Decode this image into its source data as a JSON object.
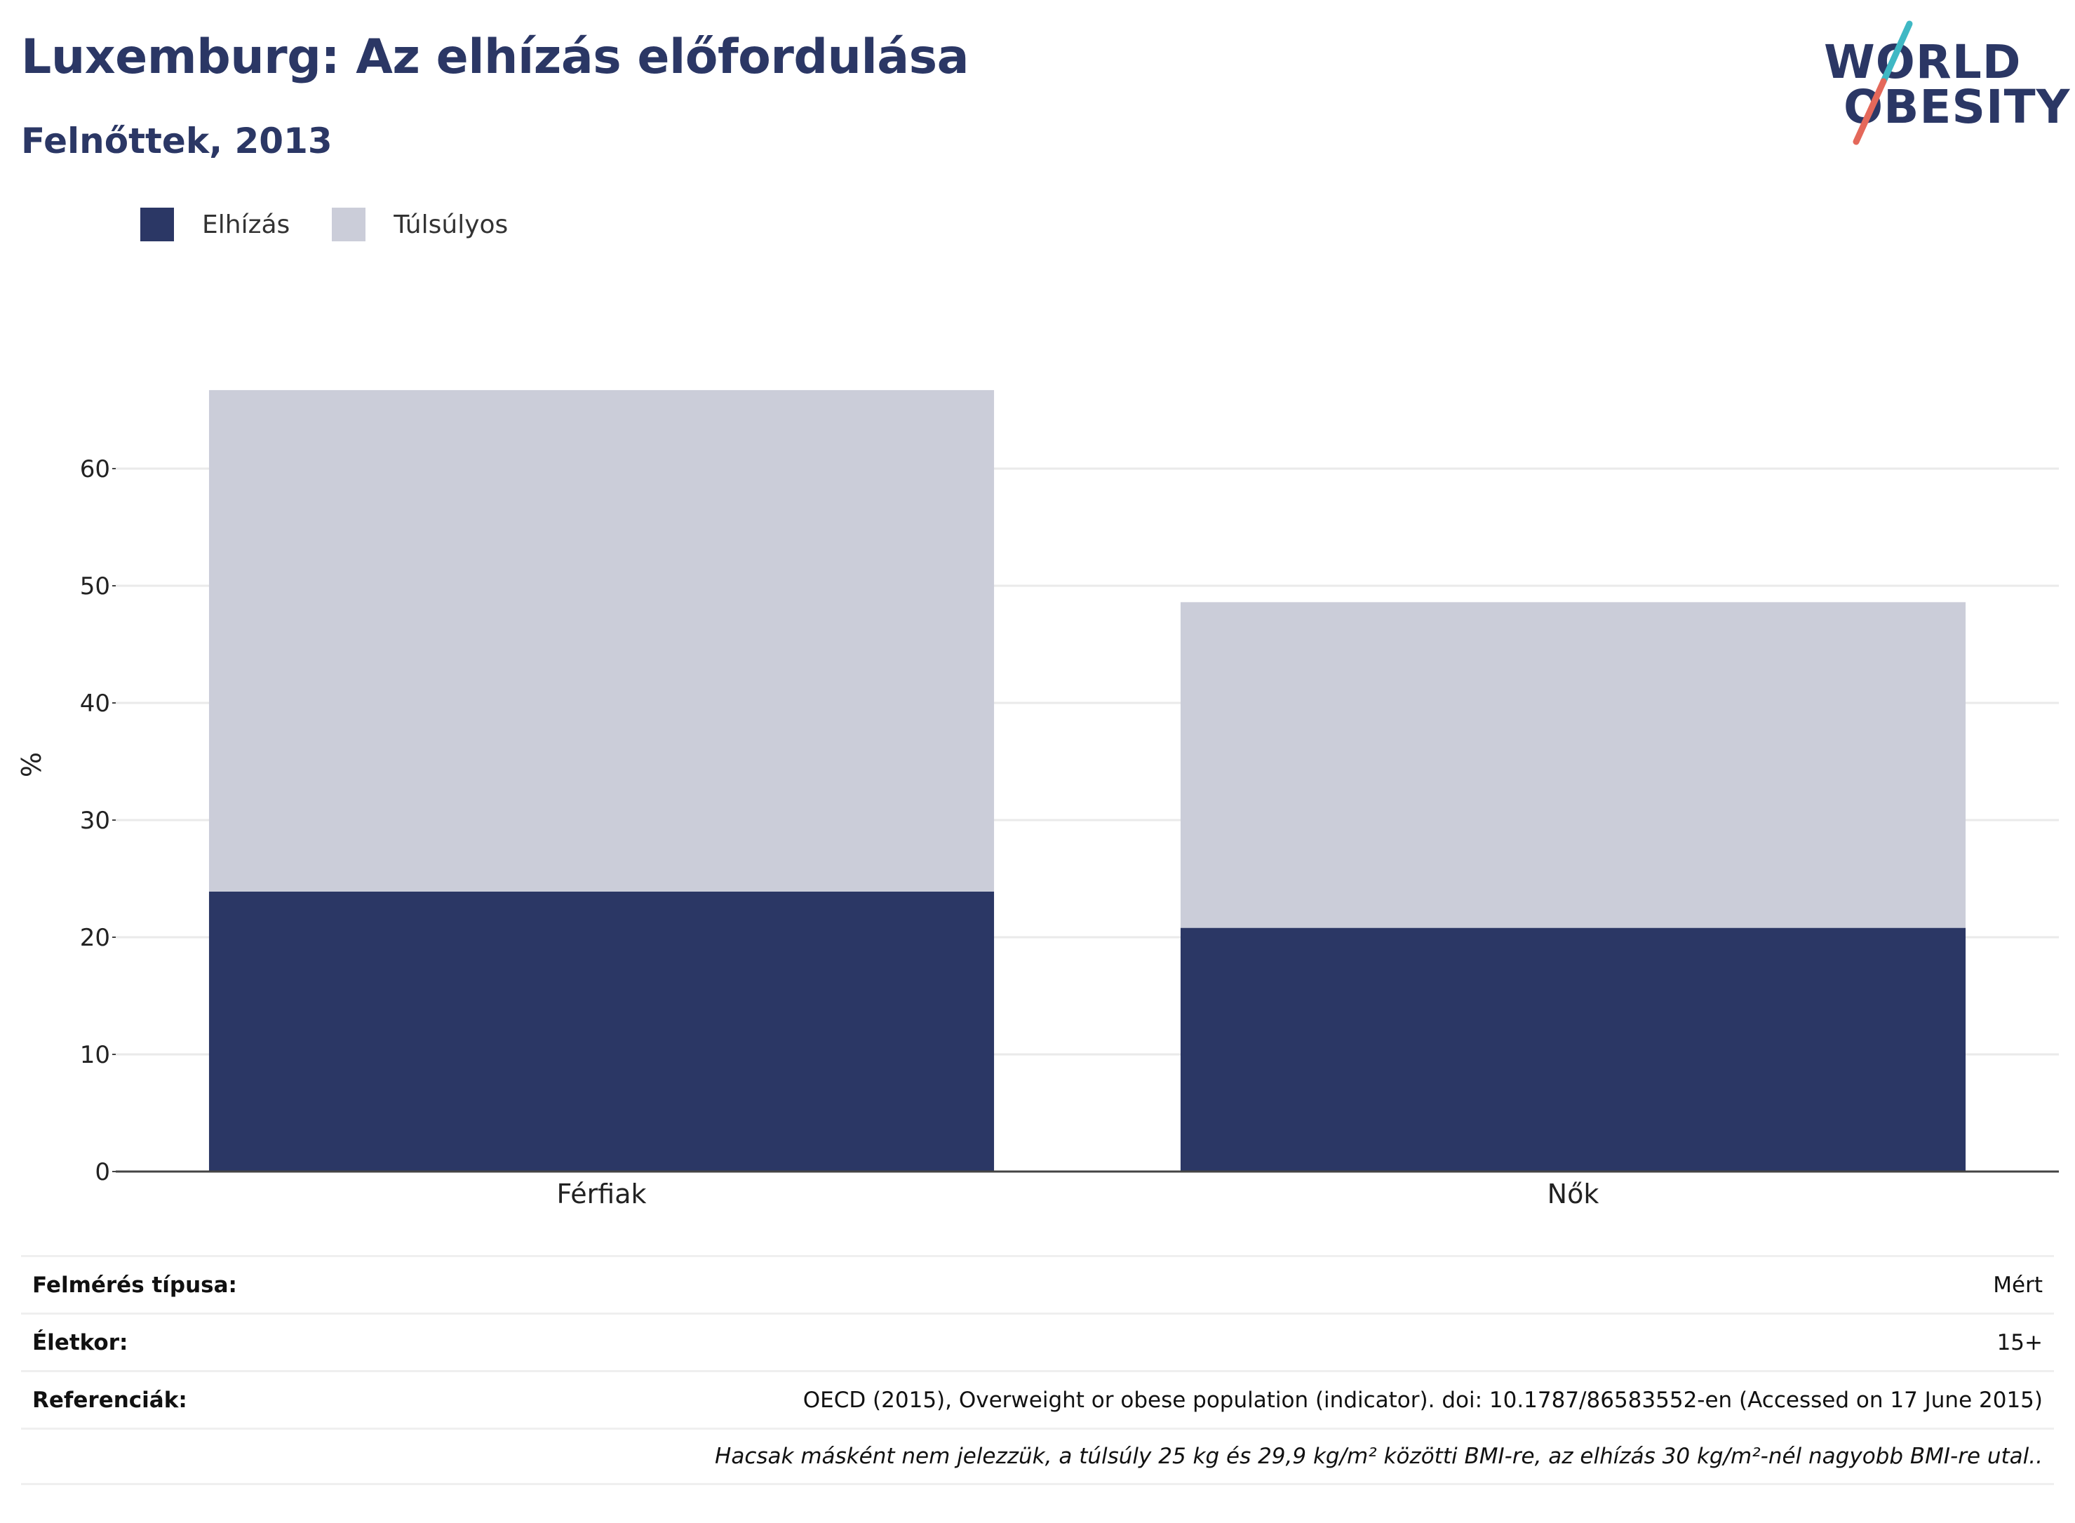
{
  "header": {
    "title": "Luxemburg: Az elhízás előfordulása",
    "subtitle": "Felnőttek, 2013"
  },
  "logo": {
    "line1": "WORLD",
    "line2": "OBESITY",
    "colors": {
      "text": "#2b3765",
      "slash_top": "#3fb8c4",
      "slash_bottom": "#e4685a"
    }
  },
  "legend": [
    {
      "label": "Elhízás",
      "color": "#2b3765"
    },
    {
      "label": "Túlsúlyos",
      "color": "#cbcdd9"
    }
  ],
  "chart_data": {
    "type": "bar",
    "stacked": true,
    "categories": [
      "Férfiak",
      "Nők"
    ],
    "series": [
      {
        "name": "Elhízás",
        "color": "#2b3765",
        "values": [
          23.9,
          20.8
        ]
      },
      {
        "name": "Túlsúlyos",
        "color": "#cbcdd9",
        "values": [
          42.8,
          27.8
        ]
      }
    ],
    "ylabel": "%",
    "ylim": [
      0,
      70
    ],
    "yticks": [
      0,
      10,
      20,
      30,
      40,
      50,
      60
    ],
    "grid": true
  },
  "info": [
    {
      "label": "Felmérés típusa:",
      "value": "Mért"
    },
    {
      "label": "Életkor:",
      "value": "15+"
    },
    {
      "label": "Referenciák:",
      "value": "OECD (2015), Overweight or obese population (indicator). doi: 10.1787/86583552-en (Accessed on 17 June 2015)"
    }
  ],
  "note": "Hacsak másként nem jelezzük, a túlsúly 25 kg és 29,9 kg/m² közötti BMI-re, az elhízás 30 kg/m²-nél nagyobb BMI-re utal.."
}
